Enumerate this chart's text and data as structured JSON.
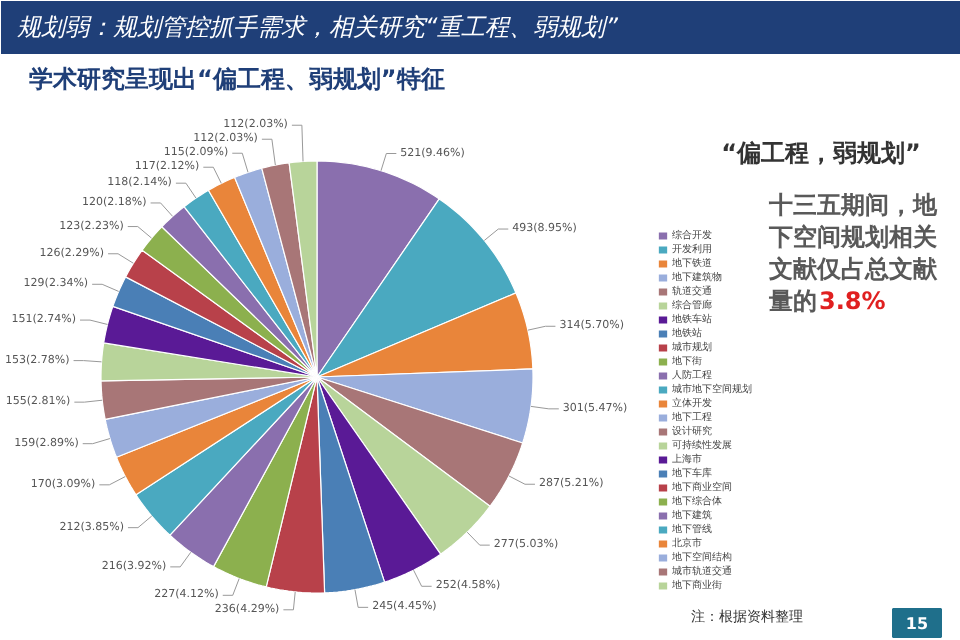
{
  "chart_data": {
    "type": "pie",
    "title": "规划弱：规划管控抓手需求，相关研究“重工程、弱规划”",
    "subtitle": "学术研究呈现出“偏工程、弱规划”特征",
    "categories": [
      "综合开发",
      "开发利用",
      "地下铁道",
      "地下建筑物",
      "轨道交通",
      "综合管廊",
      "地铁车站",
      "地铁站",
      "城市规划",
      "地下街",
      "人防工程",
      "城市地下空间规划",
      "立体开发",
      "地下工程",
      "设计研究",
      "可持续性发展",
      "上海市",
      "地下车库",
      "地下商业空间",
      "地下综合体",
      "地下建筑",
      "地下管线",
      "北京市",
      "地下空间结构",
      "城市轨道交通",
      "地下商业街"
    ],
    "values": [
      521,
      493,
      314,
      301,
      287,
      277,
      252,
      245,
      236,
      227,
      216,
      212,
      170,
      159,
      155,
      153,
      151,
      129,
      126,
      123,
      120,
      118,
      117,
      115,
      112,
      112
    ],
    "value_labels": [
      "521(9.46%)",
      "493(8.95%)",
      "314(5.70%)",
      "301(5.47%)",
      "287(5.21%)",
      "277(5.03%)",
      "252(4.58%)",
      "245(4.45%)",
      "236(4.29%)",
      "227(4.12%)",
      "216(3.92%)",
      "212(3.85%)",
      "170(3.09%)",
      "159(2.89%)",
      "155(2.81%)",
      "153(2.78%)",
      "151(2.74%)",
      "129(2.34%)",
      "126(2.29%)",
      "123(2.23%)",
      "120(2.18%)",
      "118(2.14%)",
      "117(2.12%)",
      "115(2.09%)",
      "112(2.03%)",
      "112(2.03%)"
    ],
    "colors": [
      "#8a6fae",
      "#4aa9c0",
      "#e9853a",
      "#9aaedc",
      "#a87677",
      "#b8d49a",
      "#5a1a96",
      "#4a7fb6",
      "#b8414a",
      "#8cb04e",
      "#8a6fae",
      "#4aa9c0",
      "#e9853a",
      "#9aaedc",
      "#a87677",
      "#b8d49a",
      "#5a1a96",
      "#4a7fb6",
      "#b8414a",
      "#8cb04e",
      "#8a6fae",
      "#4aa9c0",
      "#e9853a",
      "#9aaedc",
      "#a87677",
      "#b8d49a"
    ],
    "legend": "right",
    "annotations": [
      "“偏工程，弱规划”",
      "十三五期间，地下空间规划相关文献仅占总文献量的3.8%",
      "注：根据资料整理",
      "15"
    ]
  }
}
